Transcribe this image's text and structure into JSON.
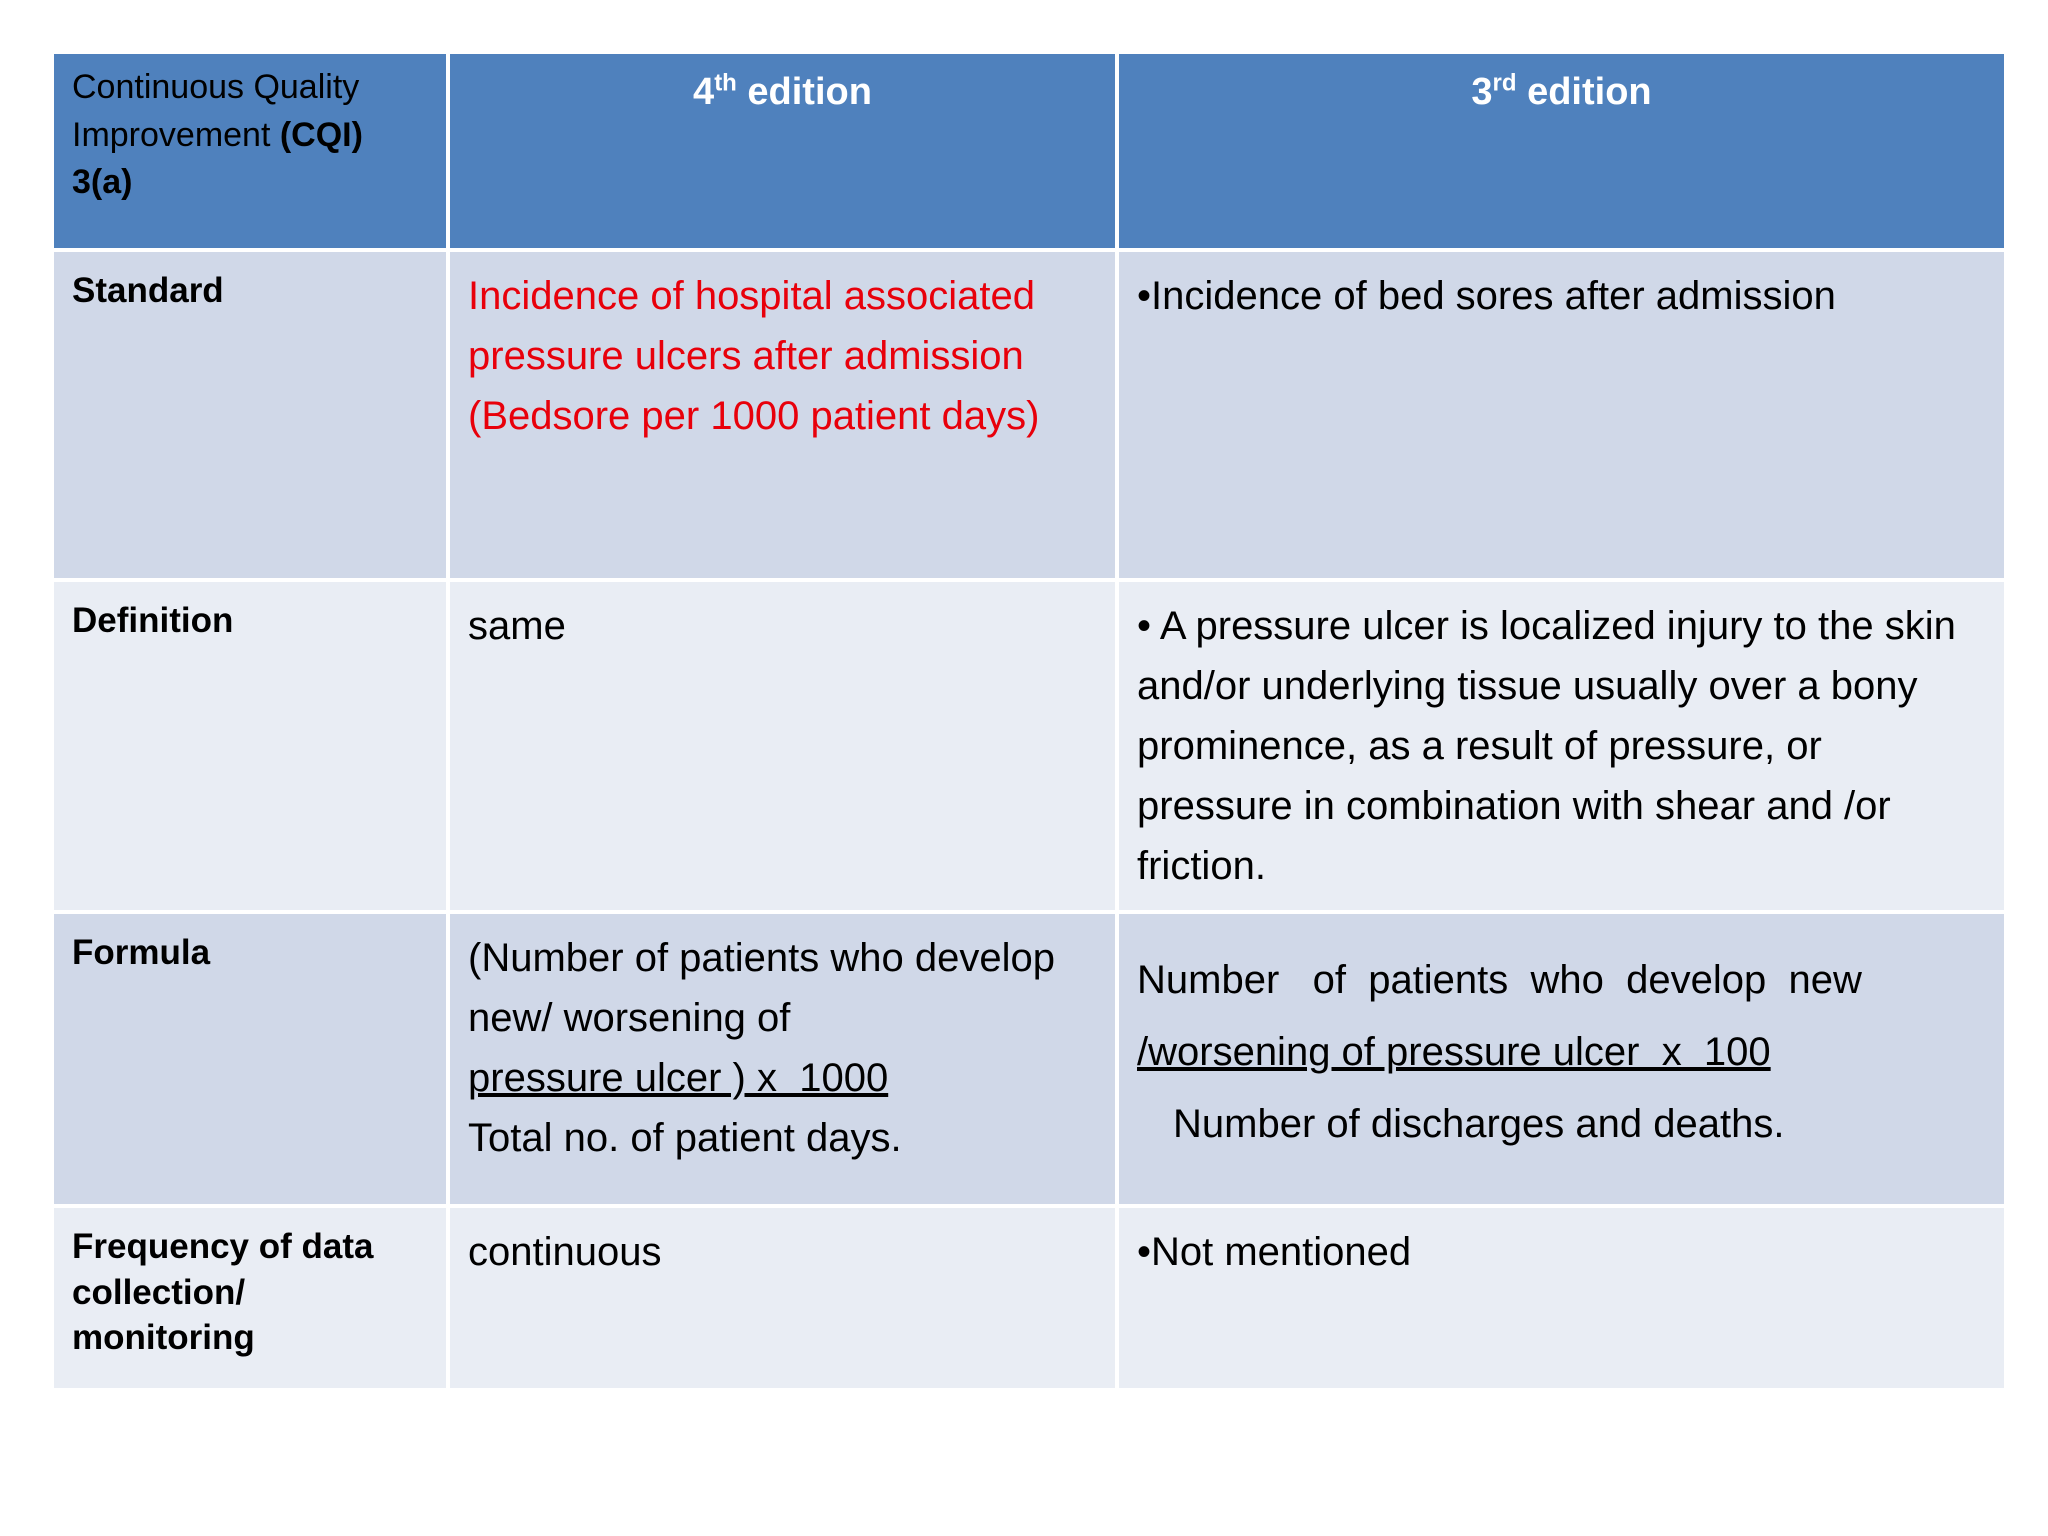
{
  "header": {
    "topic": [
      "Continuous Quality Improvement ",
      "(CQI)",
      "3(a)"
    ],
    "fourth": [
      "4",
      "th",
      " edition"
    ],
    "third": [
      "3",
      "rd",
      " edition"
    ]
  },
  "rows": [
    {
      "label": "Standard",
      "fourth": "Incidence of hospital associated pressure ulcers after admission (Bedsore per 1000 patient days)",
      "third": "•Incidence of bed sores after admission"
    },
    {
      "label": "Definition",
      "fourth": "same",
      "third": "• A pressure ulcer is localized injury to the skin and/or underlying tissue usually over a bony prominence, as a result of pressure, or pressure in combination with shear and /or friction."
    },
    {
      "label": "Formula",
      "fourth": [
        "(Number of patients who develop new/ worsening of",
        "pressure ulcer ) x  1000",
        "Total no. of patient days."
      ],
      "third": [
        "Number   of  patients  who  develop  new",
        "/worsening of pressure ulcer  x  100",
        "Number of discharges and deaths."
      ]
    },
    {
      "label": "Frequency  of data collection/ monitoring",
      "fourth": "continuous",
      "third": "•Not mentioned"
    }
  ]
}
